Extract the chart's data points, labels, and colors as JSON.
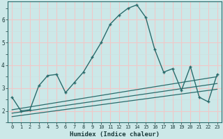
{
  "xlabel": "Humidex (Indice chaleur)",
  "xlim": [
    -0.5,
    23.5
  ],
  "ylim": [
    1.5,
    6.8
  ],
  "xticks": [
    0,
    1,
    2,
    3,
    4,
    5,
    6,
    7,
    8,
    9,
    10,
    11,
    12,
    13,
    14,
    15,
    16,
    17,
    18,
    19,
    20,
    21,
    22,
    23
  ],
  "yticks": [
    2,
    3,
    4,
    5,
    6
  ],
  "bg_color": "#cce8e8",
  "line_color": "#2a6b6b",
  "grid_major_color": "#f0c8c8",
  "grid_minor_color": "#cce0e0",
  "main_line_x": [
    0,
    1,
    2,
    3,
    4,
    5,
    6,
    7,
    8,
    9,
    10,
    11,
    12,
    13,
    14,
    15,
    16,
    17,
    18,
    19,
    20,
    21,
    22,
    23
  ],
  "main_line_y": [
    2.6,
    2.0,
    2.05,
    3.1,
    3.55,
    3.6,
    2.8,
    3.25,
    3.7,
    4.35,
    5.0,
    5.8,
    6.2,
    6.5,
    6.65,
    6.1,
    4.7,
    3.7,
    3.85,
    2.9,
    3.95,
    2.6,
    2.4,
    3.6
  ],
  "line2_x": [
    0,
    23
  ],
  "line2_y": [
    2.05,
    3.5
  ],
  "line3_x": [
    0,
    23
  ],
  "line3_y": [
    1.9,
    3.2
  ],
  "line4_x": [
    0,
    23
  ],
  "line4_y": [
    1.75,
    2.95
  ]
}
